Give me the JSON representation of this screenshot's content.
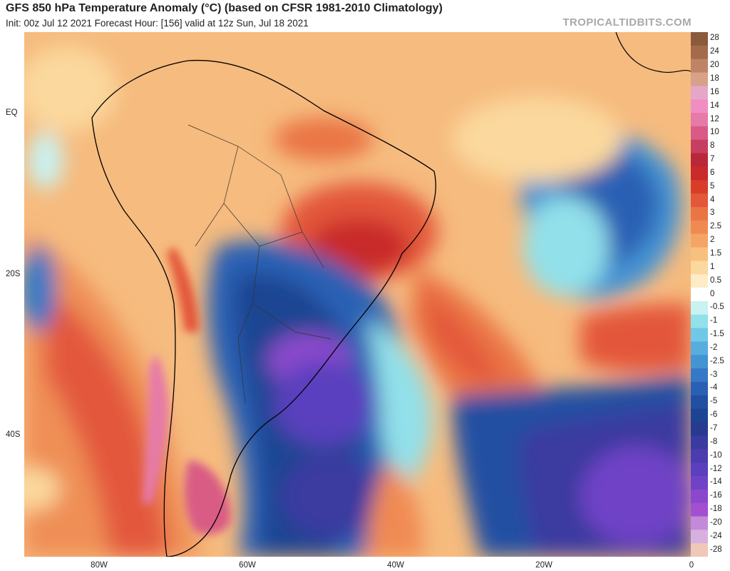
{
  "header": {
    "title": "GFS 850 hPa Temperature Anomaly (°C) (based on CFSR 1981-2010 Climatology)",
    "subtitle": "Init: 00z Jul 12 2021   Forecast Hour: [156]   valid at 12z Sun, Jul 18 2021",
    "site": "TROPICALTIDBITS.COM"
  },
  "axes": {
    "lat_ticks": [
      "EQ",
      "20S",
      "40S"
    ],
    "lon_ticks": [
      "80W",
      "60W",
      "40W",
      "20W",
      "0"
    ]
  },
  "colorbar": {
    "labels": [
      "28",
      "24",
      "20",
      "18",
      "16",
      "14",
      "12",
      "10",
      "8",
      "7",
      "6",
      "5",
      "4",
      "3",
      "2.5",
      "2",
      "1.5",
      "1",
      "0.5",
      "0",
      "-0.5",
      "-1",
      "-1.5",
      "-2",
      "-2.5",
      "-3",
      "-4",
      "-5",
      "-6",
      "-7",
      "-8",
      "-10",
      "-12",
      "-14",
      "-16",
      "-18",
      "-20",
      "-24",
      "-28"
    ],
    "colors": [
      "#8a5a3c",
      "#a36b4c",
      "#bf8466",
      "#d9a08a",
      "#e6a6c8",
      "#f08ec4",
      "#e67aa8",
      "#d95b85",
      "#c83e60",
      "#b82838",
      "#c92a2a",
      "#d93d2a",
      "#e3573a",
      "#ea7444",
      "#f08a52",
      "#f4a565",
      "#f8c07f",
      "#fbd89d",
      "#fdecc6",
      "#ffffff",
      "#c9f2f2",
      "#92e0ea",
      "#70c8e8",
      "#58addf",
      "#4493d3",
      "#3578c5",
      "#2a60b4",
      "#2150a2",
      "#1c4492",
      "#283a8f",
      "#3a3ba0",
      "#4b3cb0",
      "#5a3fbe",
      "#7042c6",
      "#8a48cc",
      "#a24fd2",
      "#c28ad8",
      "#d8b0e0",
      "#f0c8b8"
    ]
  }
}
